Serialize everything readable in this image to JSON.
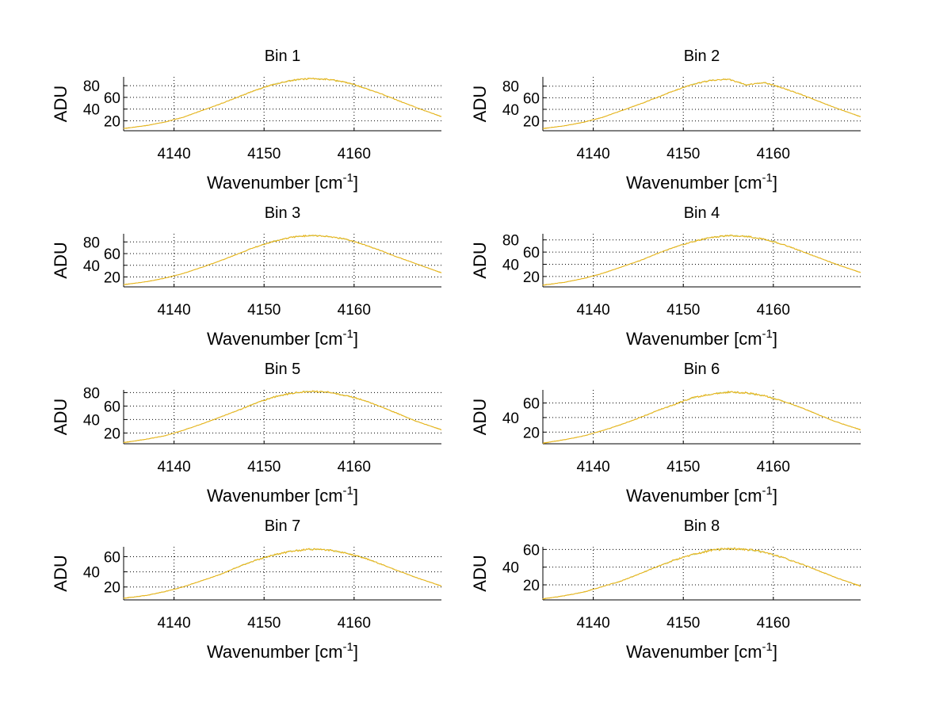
{
  "chart_data": {
    "type": "line",
    "layout": "4x2 subplots",
    "xlabel": "Wavenumber [cm",
    "xlabel_sup": "-1",
    "xlabel_close": "]",
    "ylabel": "ADU",
    "xlim": [
      4134.4,
      4169.7
    ],
    "xticks": [
      4140,
      4150,
      4160
    ],
    "grid": true,
    "line_color": "#e8b41c",
    "x": [
      4135,
      4137,
      4139,
      4141,
      4143,
      4145,
      4147,
      4149,
      4151,
      4153,
      4155,
      4157,
      4159,
      4161,
      4163,
      4165,
      4167,
      4169
    ],
    "subplots": [
      {
        "title": "Bin 1",
        "ylim": [
          3,
          95
        ],
        "yticks": [
          20,
          40,
          60,
          80
        ],
        "y": [
          8,
          12,
          18,
          26,
          37,
          48,
          60,
          72,
          82,
          89,
          92,
          91,
          86,
          77,
          66,
          54,
          42,
          31
        ]
      },
      {
        "title": "Bin 2",
        "ylim": [
          3,
          96
        ],
        "yticks": [
          20,
          40,
          60,
          80
        ],
        "y": [
          8,
          12,
          18,
          26,
          37,
          48,
          60,
          72,
          83,
          90,
          92,
          82,
          86,
          77,
          66,
          54,
          42,
          31
        ]
      },
      {
        "title": "Bin 3",
        "ylim": [
          3,
          94
        ],
        "yticks": [
          20,
          40,
          60,
          80
        ],
        "y": [
          8,
          12,
          18,
          26,
          36,
          47,
          59,
          71,
          81,
          88,
          91,
          90,
          85,
          76,
          65,
          53,
          42,
          31
        ]
      },
      {
        "title": "Bin 4",
        "ylim": [
          3,
          90
        ],
        "yticks": [
          20,
          40,
          60,
          80
        ],
        "y": [
          7,
          11,
          17,
          25,
          35,
          45,
          57,
          68,
          77,
          84,
          87,
          86,
          81,
          73,
          62,
          51,
          40,
          30
        ]
      },
      {
        "title": "Bin 5",
        "ylim": [
          4,
          84
        ],
        "yticks": [
          20,
          40,
          60,
          80
        ],
        "y": [
          7,
          11,
          16,
          24,
          33,
          43,
          53,
          64,
          73,
          79,
          82,
          81,
          76,
          69,
          59,
          48,
          37,
          28
        ]
      },
      {
        "title": "Bin 6",
        "ylim": [
          4,
          78
        ],
        "yticks": [
          20,
          40,
          60
        ],
        "y": [
          6,
          10,
          15,
          22,
          30,
          39,
          49,
          58,
          67,
          72,
          75,
          74,
          70,
          63,
          54,
          44,
          34,
          26
        ]
      },
      {
        "title": "Bin 7",
        "ylim": [
          3,
          73
        ],
        "yticks": [
          20,
          40,
          60
        ],
        "y": [
          6,
          9,
          14,
          20,
          28,
          36,
          46,
          55,
          62,
          67,
          70,
          69,
          65,
          59,
          50,
          41,
          32,
          24
        ]
      },
      {
        "title": "Bin 8",
        "ylim": [
          3,
          63
        ],
        "yticks": [
          20,
          40,
          60
        ],
        "y": [
          5,
          8,
          12,
          18,
          24,
          32,
          40,
          48,
          54,
          59,
          61,
          60,
          57,
          51,
          44,
          36,
          28,
          21
        ]
      }
    ]
  }
}
